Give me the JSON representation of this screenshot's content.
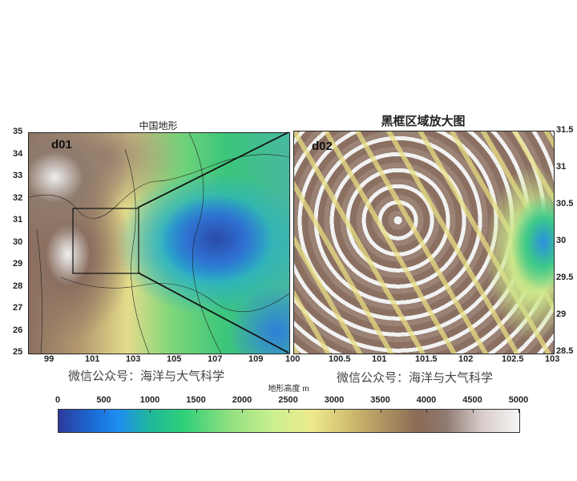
{
  "left_map": {
    "title": "中国地形",
    "label": "d01",
    "lat_ticks": [
      "35",
      "34",
      "33",
      "32",
      "31",
      "30",
      "29",
      "28",
      "27",
      "26",
      "25"
    ],
    "lon_ticks": [
      "99",
      "101",
      "103",
      "105",
      "107",
      "109"
    ],
    "watermark": "微信公众号：海洋与大气科学"
  },
  "right_map": {
    "title": "黑框区域放大图",
    "label": "d02",
    "lat_ticks": [
      "31.5",
      "31",
      "30.5",
      "30",
      "29.5",
      "29",
      "28.5"
    ],
    "lon_ticks": [
      "100",
      "100.5",
      "101",
      "101.5",
      "102",
      "102.5",
      "103"
    ],
    "watermark": "微信公众号：海洋与大气科学"
  },
  "colorbar": {
    "title": "地形高度 m",
    "ticks": [
      "0",
      "500",
      "1000",
      "1500",
      "2000",
      "2500",
      "3000",
      "3500",
      "4000",
      "4500",
      "5000"
    ],
    "colors": [
      "#2c3b9c",
      "#1e8ef0",
      "#2ecf7a",
      "#cdf090",
      "#eeea8c",
      "#8b6a55",
      "#f6f6f6"
    ]
  }
}
